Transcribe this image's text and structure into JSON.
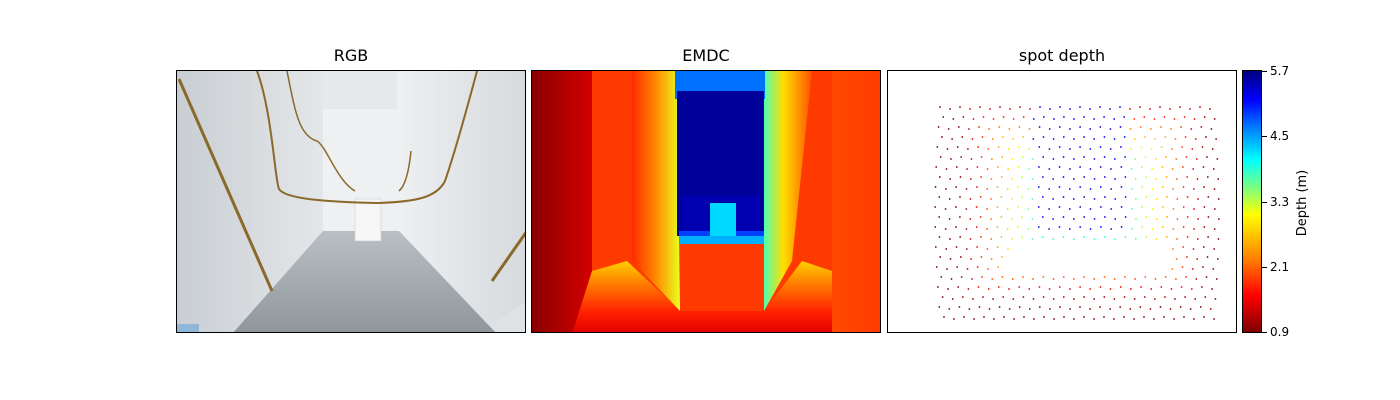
{
  "panels": [
    {
      "title": "RGB"
    },
    {
      "title": "EMDC"
    },
    {
      "title": "spot depth"
    }
  ],
  "colorbar": {
    "label": "Depth (m)",
    "ticks": [
      "5.7",
      "4.5",
      "3.3",
      "2.1",
      "0.9"
    ],
    "min": 0.9,
    "max": 5.7,
    "colormap": "jet-reversed"
  }
}
